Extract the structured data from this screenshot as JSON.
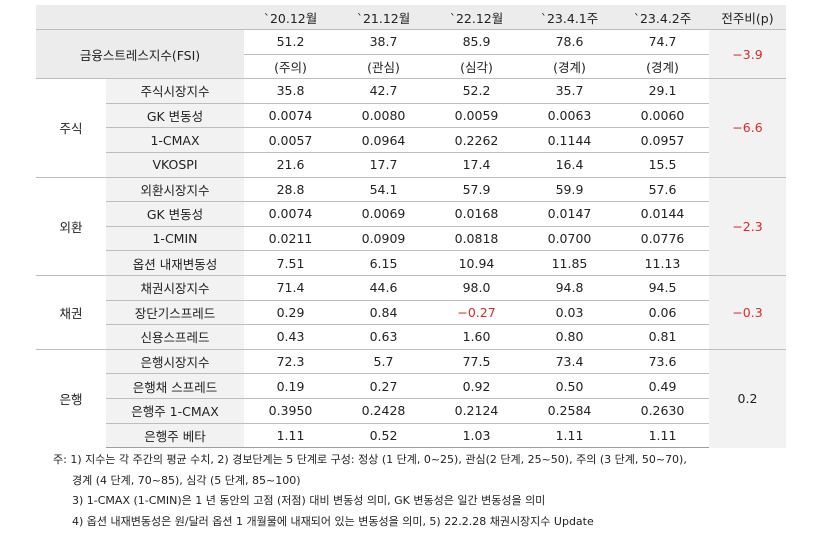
{
  "header": {
    "cols": [
      "`20.12월",
      "`21.12월",
      "`22.12월",
      "`23.4.1주",
      "`23.4.2주"
    ],
    "change": "전주비(p)"
  },
  "fsi": {
    "label": "금융스트레스지수(FSI)",
    "values": [
      "51.2",
      "38.7",
      "85.9",
      "78.6",
      "74.7"
    ],
    "stages": [
      "(주의)",
      "(관심)",
      "(심각)",
      "(경계)",
      "(경계)"
    ],
    "change": "-3.9"
  },
  "groups": [
    {
      "name": "주식",
      "change": "-6.6",
      "rows": [
        {
          "label": "주식시장지수",
          "values": [
            "35.8",
            "42.7",
            "52.2",
            "35.7",
            "29.1"
          ]
        },
        {
          "label": "GK 변동성",
          "values": [
            "0.0074",
            "0.0080",
            "0.0059",
            "0.0063",
            "0.0060"
          ]
        },
        {
          "label": "1-CMAX",
          "values": [
            "0.0057",
            "0.0964",
            "0.2262",
            "0.1144",
            "0.0957"
          ]
        },
        {
          "label": "VKOSPI",
          "values": [
            "21.6",
            "17.7",
            "17.4",
            "16.4",
            "15.5"
          ]
        }
      ]
    },
    {
      "name": "외환",
      "change": "-2.3",
      "rows": [
        {
          "label": "외환시장지수",
          "values": [
            "28.8",
            "54.1",
            "57.9",
            "59.9",
            "57.6"
          ]
        },
        {
          "label": "GK 변동성",
          "values": [
            "0.0074",
            "0.0069",
            "0.0168",
            "0.0147",
            "0.0144"
          ]
        },
        {
          "label": "1-CMIN",
          "values": [
            "0.0211",
            "0.0909",
            "0.0818",
            "0.0700",
            "0.0776"
          ]
        },
        {
          "label": "옵션 내재변동성",
          "values": [
            "7.51",
            "6.15",
            "10.94",
            "11.85",
            "11.13"
          ]
        }
      ]
    },
    {
      "name": "채권",
      "change": "-0.3",
      "rows": [
        {
          "label": "채권시장지수",
          "values": [
            "71.4",
            "44.6",
            "98.0",
            "94.8",
            "94.5"
          ]
        },
        {
          "label": "장단기스프레드",
          "values": [
            "0.29",
            "0.84",
            "-0.27",
            "0.03",
            "0.06"
          ]
        },
        {
          "label": "신용스프레드",
          "values": [
            "0.43",
            "0.63",
            "1.60",
            "0.80",
            "0.81"
          ]
        }
      ]
    },
    {
      "name": "은행",
      "change": "0.2",
      "rows": [
        {
          "label": "은행시장지수",
          "values": [
            "72.3",
            "5.7",
            "77.5",
            "73.4",
            "73.6"
          ]
        },
        {
          "label": "은행채 스프레드",
          "values": [
            "0.19",
            "0.27",
            "0.92",
            "0.50",
            "0.49"
          ]
        },
        {
          "label": "은행주 1-CMAX",
          "values": [
            "0.3950",
            "0.2428",
            "0.2124",
            "0.2584",
            "0.2630"
          ]
        },
        {
          "label": "은행주 베타",
          "values": [
            "1.11",
            "0.52",
            "1.03",
            "1.11",
            "1.11"
          ]
        }
      ]
    }
  ],
  "colors": {
    "negative": "#d92b2b",
    "header_bg": "#ececec",
    "label_bg": "#f2f2f2"
  },
  "notes": [
    "주: 1) 지수는 각 주간의 평균 수치, 2) 경보단계는 5 단계로 구성: 정상 (1 단계, 0~25), 관심(2 단계, 25~50), 주의 (3 단계, 50~70),",
    "경계 (4 단계, 70~85), 심각 (5 단계, 85~100)",
    "3) 1-CMAX (1-CMIN)은 1 년 동안의 고점 (저점) 대비 변동성 의미, GK 변동성은 일간 변동성을 의미",
    "4) 옵션 내재변동성은 원/달러 옵션 1 개월물에 내재되어 있는 변동성을 의미, 5) 22.2.28 채권시장지수 Update"
  ]
}
